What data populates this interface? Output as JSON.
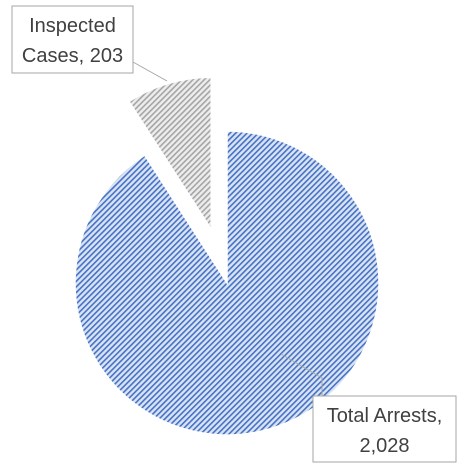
{
  "chart_data": {
    "type": "pie",
    "title": "",
    "exploded": true,
    "pattern": "diagonal-hatch",
    "slices": [
      {
        "category": "Total Arrests",
        "value": 2028,
        "value_label": "2,028",
        "color": "#4472c4",
        "background_color": "#dae3f3"
      },
      {
        "category": "Inspected Cases",
        "value": 203,
        "value_label": "203",
        "color": "#a5a5a5",
        "background_color": "#ededed"
      }
    ],
    "labels": {
      "total_arrests": {
        "line1": "Total Arrests,",
        "line2": "2,028"
      },
      "inspected_cases": {
        "line1": "Inspected",
        "line2": "Cases, 203"
      }
    }
  }
}
